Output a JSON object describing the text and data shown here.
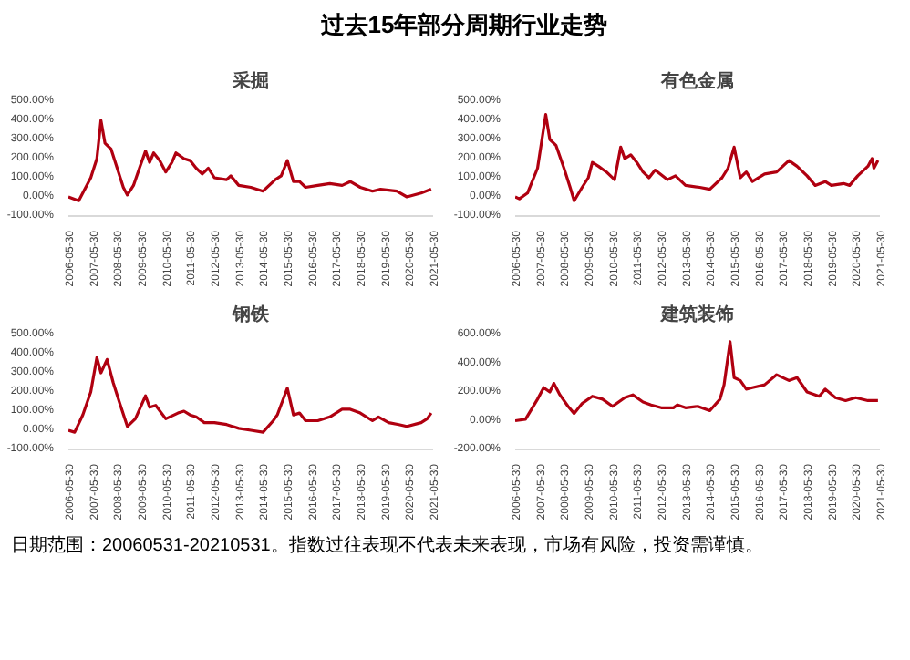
{
  "chart_data": [
    {
      "type": "other",
      "title": "过去15年部分周期行业走势",
      "annotations": [
        "日期范围：20060531-20210531。指数过往表现不代表未来表现，市场有风险，投资需谨慎。"
      ]
    },
    {
      "type": "line",
      "title": "采掘",
      "xlim": [
        "2006-05-30",
        "2021-05-30"
      ],
      "xticks": [
        "2006-05-30",
        "2007-05-30",
        "2008-05-30",
        "2009-05-30",
        "2010-05-30",
        "2011-05-30",
        "2012-05-30",
        "2013-05-30",
        "2014-05-30",
        "2015-05-30",
        "2016-05-30",
        "2017-05-30",
        "2018-05-30",
        "2019-05-30",
        "2020-05-30",
        "2021-05-30"
      ],
      "ylim": [
        -100,
        500
      ],
      "yticks": [
        {
          "value": -100,
          "label": "-100.00%"
        },
        {
          "value": 0,
          "label": "0.00%"
        },
        {
          "value": 100,
          "label": "100.00%"
        },
        {
          "value": 200,
          "label": "200.00%"
        },
        {
          "value": 300,
          "label": "300.00%"
        },
        {
          "value": 400,
          "label": "400.00%"
        },
        {
          "value": 500,
          "label": "500.00%"
        }
      ],
      "grid": false,
      "x": [
        "2006-05-30",
        "2006-11",
        "2007-05",
        "2007-08",
        "2007-10",
        "2007-12",
        "2008-03",
        "2008-06",
        "2008-09",
        "2008-11",
        "2009-02",
        "2009-05",
        "2009-08",
        "2009-10",
        "2009-12",
        "2010-03",
        "2010-06",
        "2010-09",
        "2010-11",
        "2011-03",
        "2011-06",
        "2011-09",
        "2011-12",
        "2012-03",
        "2012-06",
        "2012-12",
        "2013-02",
        "2013-06",
        "2013-12",
        "2014-06",
        "2014-12",
        "2015-03",
        "2015-06",
        "2015-09",
        "2015-12",
        "2016-03",
        "2016-09",
        "2017-03",
        "2017-09",
        "2018-01",
        "2018-06",
        "2018-12",
        "2019-04",
        "2019-12",
        "2020-05",
        "2020-12",
        "2021-05"
      ],
      "series": [
        {
          "color": "#b00010",
          "values": [
            0,
            -20,
            100,
            200,
            400,
            280,
            250,
            150,
            50,
            10,
            60,
            150,
            240,
            180,
            230,
            190,
            130,
            180,
            230,
            200,
            190,
            150,
            120,
            150,
            100,
            90,
            110,
            60,
            50,
            30,
            90,
            110,
            190,
            80,
            80,
            50,
            60,
            70,
            60,
            80,
            50,
            30,
            40,
            30,
            0,
            20,
            40
          ]
        }
      ]
    },
    {
      "type": "line",
      "title": "有色金属",
      "xlim": [
        "2006-05-30",
        "2021-05-30"
      ],
      "xticks": [
        "2006-05-30",
        "2007-05-30",
        "2008-05-30",
        "2009-05-30",
        "2010-05-30",
        "2011-05-30",
        "2012-05-30",
        "2013-05-30",
        "2014-05-30",
        "2015-05-30",
        "2016-05-30",
        "2017-05-30",
        "2018-05-30",
        "2019-05-30",
        "2020-05-30",
        "2021-05-30"
      ],
      "ylim": [
        -100,
        500
      ],
      "yticks": [
        {
          "value": -100,
          "label": "-100.00%"
        },
        {
          "value": 0,
          "label": "0.00%"
        },
        {
          "value": 100,
          "label": "100.00%"
        },
        {
          "value": 200,
          "label": "200.00%"
        },
        {
          "value": 300,
          "label": "300.00%"
        },
        {
          "value": 400,
          "label": "400.00%"
        },
        {
          "value": 500,
          "label": "500.00%"
        }
      ],
      "grid": false,
      "x": [
        "2006-05-30",
        "2006-08",
        "2006-12",
        "2007-05",
        "2007-09",
        "2007-11",
        "2008-02",
        "2008-06",
        "2008-09",
        "2008-11",
        "2009-03",
        "2009-06",
        "2009-08",
        "2009-11",
        "2010-03",
        "2010-07",
        "2010-10",
        "2010-12",
        "2011-03",
        "2011-06",
        "2011-09",
        "2011-12",
        "2012-03",
        "2012-09",
        "2013-01",
        "2013-06",
        "2014-01",
        "2014-06",
        "2014-12",
        "2015-03",
        "2015-06",
        "2015-09",
        "2015-12",
        "2016-03",
        "2016-09",
        "2017-03",
        "2017-09",
        "2018-01",
        "2018-06",
        "2018-10",
        "2019-03",
        "2019-06",
        "2019-12",
        "2020-03",
        "2020-07",
        "2020-12",
        "2021-02",
        "2021-03",
        "2021-05"
      ],
      "series": [
        {
          "color": "#b00010",
          "values": [
            0,
            -10,
            20,
            150,
            430,
            300,
            270,
            150,
            50,
            -20,
            50,
            100,
            180,
            160,
            130,
            90,
            260,
            200,
            220,
            180,
            130,
            100,
            140,
            90,
            110,
            60,
            50,
            40,
            100,
            150,
            260,
            100,
            130,
            80,
            120,
            130,
            190,
            160,
            110,
            60,
            80,
            60,
            70,
            60,
            110,
            160,
            200,
            150,
            190
          ]
        }
      ]
    },
    {
      "type": "line",
      "title": "钢铁",
      "xlim": [
        "2006-05-30",
        "2021-05-30"
      ],
      "xticks": [
        "2006-05-30",
        "2007-05-30",
        "2008-05-30",
        "2009-05-30",
        "2010-05-30",
        "2011-05-30",
        "2012-05-30",
        "2013-05-30",
        "2014-05-30",
        "2015-05-30",
        "2016-05-30",
        "2017-05-30",
        "2018-05-30",
        "2019-05-30",
        "2020-05-30",
        "2021-05-30"
      ],
      "ylim": [
        -100,
        500
      ],
      "yticks": [
        {
          "value": -100,
          "label": "-100.00%"
        },
        {
          "value": 0,
          "label": "0.00%"
        },
        {
          "value": 100,
          "label": "100.00%"
        },
        {
          "value": 200,
          "label": "200.00%"
        },
        {
          "value": 300,
          "label": "300.00%"
        },
        {
          "value": 400,
          "label": "400.00%"
        },
        {
          "value": 500,
          "label": "500.00%"
        }
      ],
      "grid": false,
      "x": [
        "2006-05-30",
        "2006-09",
        "2007-01",
        "2007-05",
        "2007-08",
        "2007-10",
        "2008-01",
        "2008-04",
        "2008-07",
        "2008-11",
        "2009-03",
        "2009-08",
        "2009-10",
        "2010-01",
        "2010-06",
        "2010-12",
        "2011-03",
        "2011-06",
        "2011-09",
        "2012-01",
        "2012-06",
        "2012-12",
        "2013-06",
        "2013-12",
        "2014-06",
        "2014-11",
        "2015-01",
        "2015-06",
        "2015-09",
        "2015-12",
        "2016-03",
        "2016-09",
        "2017-03",
        "2017-09",
        "2018-01",
        "2018-06",
        "2018-12",
        "2019-03",
        "2019-08",
        "2020-01",
        "2020-05",
        "2020-12",
        "2021-03",
        "2021-05"
      ],
      "series": [
        {
          "color": "#b00010",
          "values": [
            0,
            -10,
            80,
            200,
            380,
            300,
            370,
            250,
            150,
            20,
            60,
            180,
            120,
            130,
            60,
            90,
            100,
            80,
            70,
            40,
            40,
            30,
            10,
            0,
            -10,
            50,
            80,
            220,
            80,
            90,
            50,
            50,
            70,
            110,
            110,
            90,
            50,
            70,
            40,
            30,
            20,
            40,
            60,
            90
          ]
        }
      ]
    },
    {
      "type": "line",
      "title": "建筑装饰",
      "xlim": [
        "2006-05-30",
        "2021-05-30"
      ],
      "xticks": [
        "2006-05-30",
        "2007-05-30",
        "2008-05-30",
        "2009-05-30",
        "2010-05-30",
        "2011-05-30",
        "2012-05-30",
        "2013-05-30",
        "2014-05-30",
        "2015-05-30",
        "2016-05-30",
        "2017-05-30",
        "2018-05-30",
        "2019-05-30",
        "2020-05-30",
        "2021-05-30"
      ],
      "ylim": [
        -200,
        600
      ],
      "yticks": [
        {
          "value": -200,
          "label": "-200.00%"
        },
        {
          "value": 0,
          "label": "0.00%"
        },
        {
          "value": 200,
          "label": "200.00%"
        },
        {
          "value": 400,
          "label": "400.00%"
        },
        {
          "value": 600,
          "label": "600.00%"
        }
      ],
      "grid": false,
      "x": [
        "2006-05-30",
        "2006-11",
        "2007-05",
        "2007-08",
        "2007-11",
        "2008-01",
        "2008-04",
        "2008-08",
        "2008-11",
        "2009-03",
        "2009-08",
        "2010-01",
        "2010-06",
        "2010-12",
        "2011-04",
        "2011-09",
        "2012-01",
        "2012-06",
        "2012-12",
        "2013-02",
        "2013-06",
        "2013-12",
        "2014-06",
        "2014-11",
        "2015-01",
        "2015-04",
        "2015-06",
        "2015-09",
        "2015-12",
        "2016-03",
        "2016-09",
        "2017-03",
        "2017-09",
        "2018-01",
        "2018-06",
        "2018-12",
        "2019-03",
        "2019-08",
        "2020-01",
        "2020-06",
        "2020-12",
        "2021-05"
      ],
      "series": [
        {
          "color": "#b00010",
          "values": [
            0,
            10,
            150,
            230,
            200,
            260,
            180,
            100,
            50,
            120,
            170,
            150,
            100,
            160,
            180,
            130,
            110,
            90,
            90,
            110,
            90,
            100,
            70,
            150,
            250,
            550,
            300,
            280,
            220,
            230,
            250,
            320,
            280,
            300,
            200,
            170,
            220,
            160,
            140,
            160,
            140,
            140
          ]
        }
      ]
    }
  ]
}
